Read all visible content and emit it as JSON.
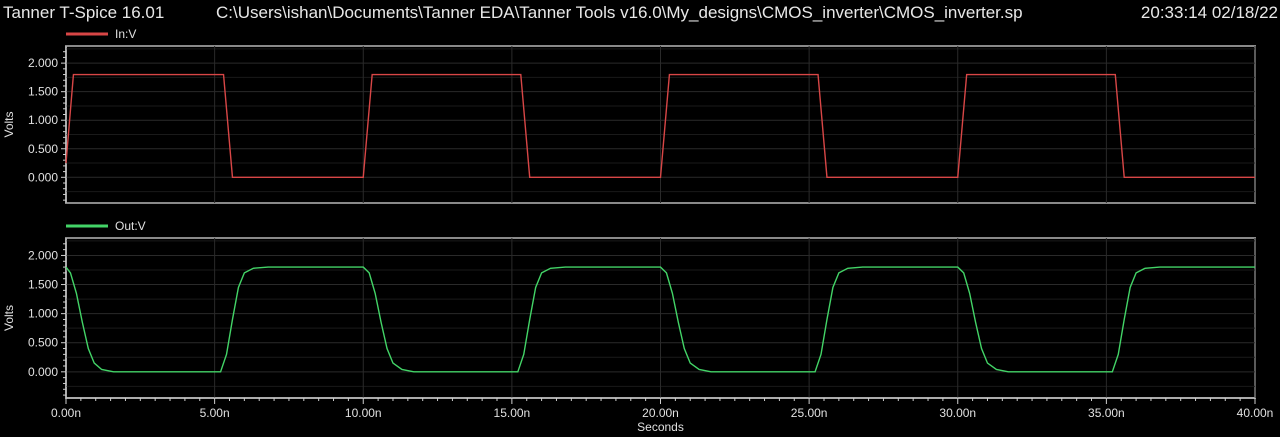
{
  "header": {
    "app_title": "Tanner T-Spice 16.01",
    "file_path": "C:\\Users\\ishan\\Documents\\Tanner EDA\\Tanner Tools v16.0\\My_designs\\CMOS_inverter\\CMOS_inverter.sp",
    "timestamp": "20:33:14 02/18/22"
  },
  "chart_data": [
    {
      "type": "line",
      "ylabel": "Volts",
      "yticks": [
        "0.000",
        "0.500",
        "1.000",
        "1.500",
        "2.000"
      ],
      "ylim": [
        -0.45,
        2.3
      ],
      "xlim": [
        0,
        40
      ],
      "grid": true,
      "legend_position": "top-left",
      "series": [
        {
          "name": "In:V",
          "color": "#d84646",
          "x": [
            0,
            0.25,
            5.3,
            5.6,
            10.0,
            10.3,
            15.3,
            15.6,
            20.0,
            20.3,
            25.3,
            25.6,
            30.0,
            30.3,
            35.3,
            35.6,
            40.0
          ],
          "y": [
            0.25,
            1.8,
            1.8,
            0,
            0,
            1.8,
            1.8,
            0,
            0,
            1.8,
            1.8,
            0,
            0,
            1.8,
            1.8,
            0,
            0
          ]
        }
      ]
    },
    {
      "type": "line",
      "ylabel": "Volts",
      "xlabel": "Seconds",
      "yticks": [
        "0.000",
        "0.500",
        "1.000",
        "1.500",
        "2.000"
      ],
      "xticks": [
        "0.00n",
        "5.00n",
        "10.00n",
        "15.00n",
        "20.00n",
        "25.00n",
        "30.00n",
        "35.00n",
        "40.00n"
      ],
      "xtick_values": [
        0,
        5,
        10,
        15,
        20,
        25,
        30,
        35,
        40
      ],
      "ylim": [
        -0.45,
        2.3
      ],
      "xlim": [
        0,
        40
      ],
      "grid": true,
      "legend_position": "top-left",
      "series": [
        {
          "name": "Out:V",
          "color": "#43d467",
          "x": [
            0,
            0.15,
            0.35,
            0.55,
            0.75,
            0.95,
            1.2,
            1.6,
            5.2,
            5.4,
            5.6,
            5.8,
            6.0,
            6.3,
            6.8,
            10.0,
            10.2,
            10.4,
            10.6,
            10.8,
            11.0,
            11.3,
            11.7,
            15.2,
            15.4,
            15.6,
            15.8,
            16.0,
            16.3,
            16.8,
            20.0,
            20.2,
            20.4,
            20.6,
            20.8,
            21.0,
            21.3,
            21.7,
            25.2,
            25.4,
            25.6,
            25.8,
            26.0,
            26.3,
            26.8,
            30.0,
            30.2,
            30.4,
            30.6,
            30.8,
            31.0,
            31.3,
            31.7,
            35.2,
            35.4,
            35.6,
            35.8,
            36.0,
            36.3,
            36.8,
            40.0
          ],
          "y": [
            1.8,
            1.7,
            1.35,
            0.85,
            0.4,
            0.15,
            0.04,
            0,
            0,
            0.3,
            0.9,
            1.45,
            1.7,
            1.78,
            1.8,
            1.8,
            1.7,
            1.35,
            0.85,
            0.4,
            0.15,
            0.04,
            0,
            0,
            0.3,
            0.9,
            1.45,
            1.7,
            1.78,
            1.8,
            1.8,
            1.7,
            1.35,
            0.85,
            0.4,
            0.15,
            0.04,
            0,
            0,
            0.3,
            0.9,
            1.45,
            1.7,
            1.78,
            1.8,
            1.8,
            1.7,
            1.35,
            0.85,
            0.4,
            0.15,
            0.04,
            0,
            0,
            0.3,
            0.9,
            1.45,
            1.7,
            1.78,
            1.8,
            1.8
          ]
        }
      ]
    }
  ]
}
